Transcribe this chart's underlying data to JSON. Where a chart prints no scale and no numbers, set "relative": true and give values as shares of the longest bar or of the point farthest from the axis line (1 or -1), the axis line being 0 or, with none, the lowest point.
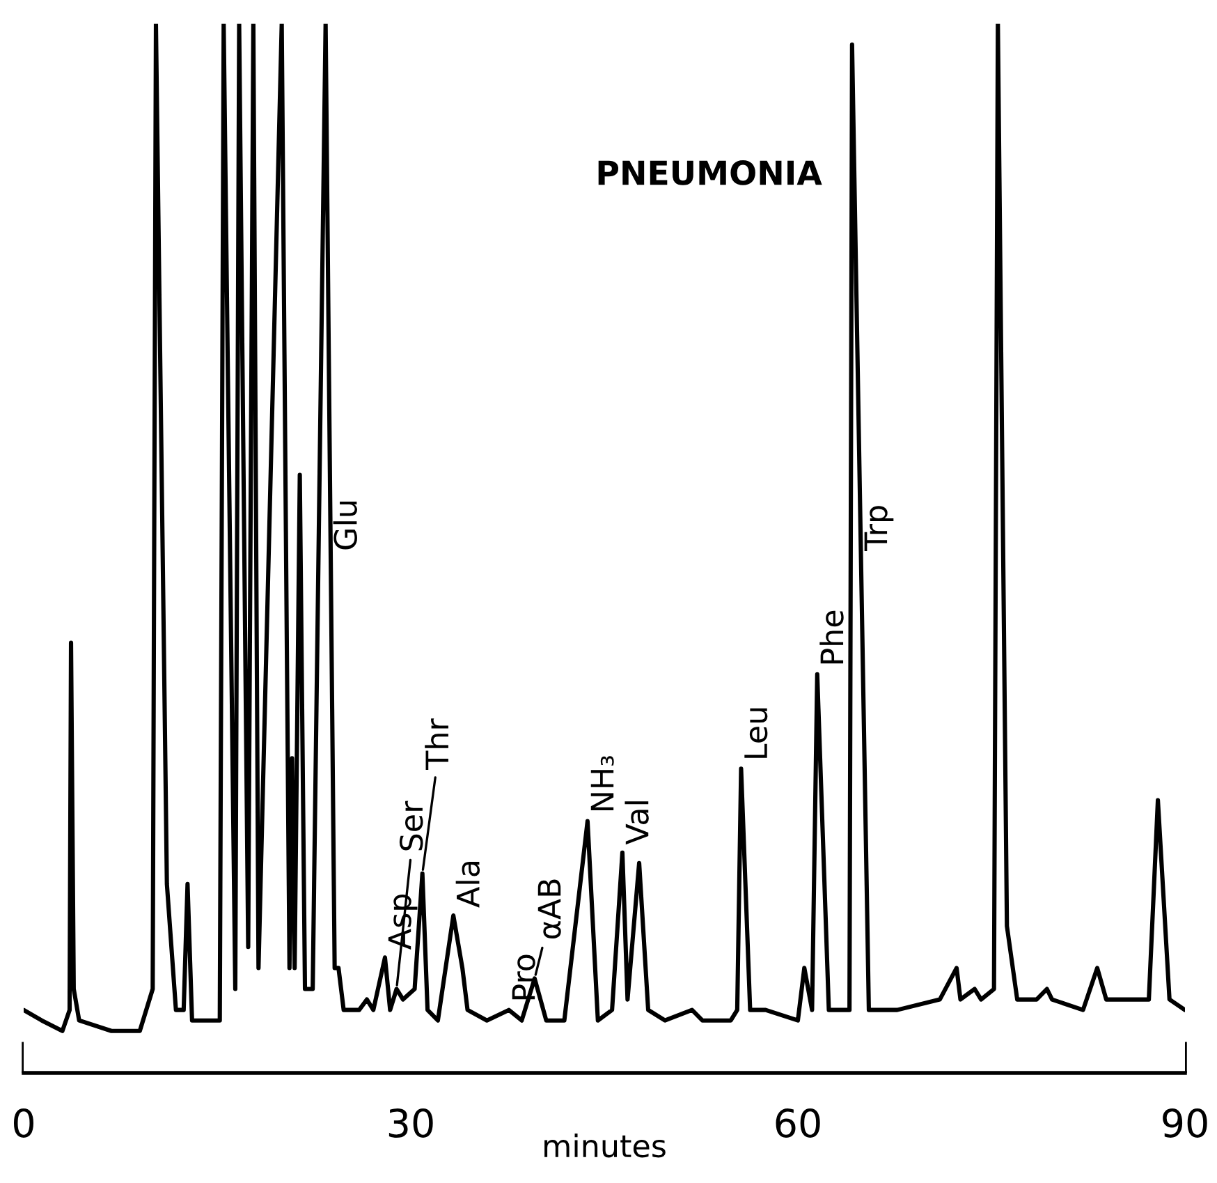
{
  "chart_data": {
    "type": "line",
    "title": "PNEUMONIA",
    "xlabel": "minutes",
    "relative": true,
    "xlim": [
      0,
      90
    ],
    "xticks": [
      0,
      30,
      60,
      90
    ],
    "x": [
      0,
      1.4,
      3.0,
      3.56,
      3.67,
      3.88,
      4.3,
      6.8,
      9.0,
      10.0,
      10.25,
      11.1,
      11.8,
      12.4,
      12.7,
      13.05,
      15.2,
      15.5,
      16.4,
      16.7,
      17.4,
      17.8,
      18.2,
      20.0,
      20.6,
      20.8,
      21.0,
      21.4,
      21.8,
      22.4,
      23.4,
      24.1,
      24.4,
      24.8,
      26.0,
      26.6,
      27.1,
      28.0,
      28.4,
      28.9,
      29.4,
      30.3,
      30.9,
      31.3,
      32.1,
      33.3,
      34.0,
      34.4,
      35.9,
      37.6,
      38.6,
      39.6,
      40.5,
      41.9,
      43.7,
      44.5,
      45.6,
      46.4,
      46.8,
      47.7,
      48.4,
      49.7,
      51.8,
      52.6,
      54.8,
      55.3,
      55.6,
      56.3,
      57.5,
      60.0,
      60.5,
      61.1,
      61.5,
      62.4,
      64.0,
      64.2,
      65.5,
      67.7,
      71.0,
      72.3,
      72.6,
      73.7,
      74.2,
      75.2,
      75.5,
      76.2,
      77.0,
      78.5,
      79.3,
      79.7,
      82.1,
      83.2,
      83.9,
      87.2,
      87.9,
      88.8,
      90.0
    ],
    "series": [
      {
        "color": "#000000",
        "values": [
          0.06,
          0.05,
          0.04,
          0.06,
          0.41,
          0.08,
          0.05,
          0.04,
          0.04,
          0.08,
          1.0,
          0.18,
          0.06,
          0.06,
          0.18,
          0.05,
          0.05,
          1.0,
          0.08,
          1.0,
          0.12,
          1.0,
          0.1,
          1.0,
          0.1,
          0.3,
          0.1,
          0.57,
          0.08,
          0.08,
          1.0,
          0.1,
          0.1,
          0.06,
          0.06,
          0.07,
          0.06,
          0.11,
          0.06,
          0.08,
          0.07,
          0.08,
          0.19,
          0.06,
          0.05,
          0.15,
          0.1,
          0.06,
          0.05,
          0.06,
          0.05,
          0.09,
          0.05,
          0.05,
          0.24,
          0.05,
          0.06,
          0.21,
          0.07,
          0.2,
          0.06,
          0.05,
          0.06,
          0.05,
          0.05,
          0.06,
          0.29,
          0.06,
          0.06,
          0.05,
          0.1,
          0.06,
          0.38,
          0.06,
          0.06,
          0.98,
          0.06,
          0.06,
          0.07,
          0.1,
          0.07,
          0.08,
          0.07,
          0.08,
          1.0,
          0.14,
          0.07,
          0.07,
          0.08,
          0.07,
          0.06,
          0.1,
          0.07,
          0.07,
          0.26,
          0.07,
          0.06
        ]
      }
    ],
    "annotations": [
      {
        "text": "Glu",
        "x": 23.8,
        "y": 0.49
      },
      {
        "text": "Asp",
        "x": 28.0,
        "y": 0.11
      },
      {
        "text": "Ser",
        "x": 28.9,
        "y": 0.08
      },
      {
        "text": "Thr",
        "x": 30.9,
        "y": 0.19
      },
      {
        "text": "Ala",
        "x": 33.3,
        "y": 0.15
      },
      {
        "text": "Pro",
        "x": 37.6,
        "y": 0.06
      },
      {
        "text": "αAB",
        "x": 39.6,
        "y": 0.09
      },
      {
        "text": "NH₃",
        "x": 43.7,
        "y": 0.24
      },
      {
        "text": "Val",
        "x": 46.4,
        "y": 0.21
      },
      {
        "text": "Leu",
        "x": 55.6,
        "y": 0.29
      },
      {
        "text": "Phe",
        "x": 61.5,
        "y": 0.38
      },
      {
        "text": "Trp",
        "x": 64.9,
        "y": 0.49
      }
    ]
  }
}
